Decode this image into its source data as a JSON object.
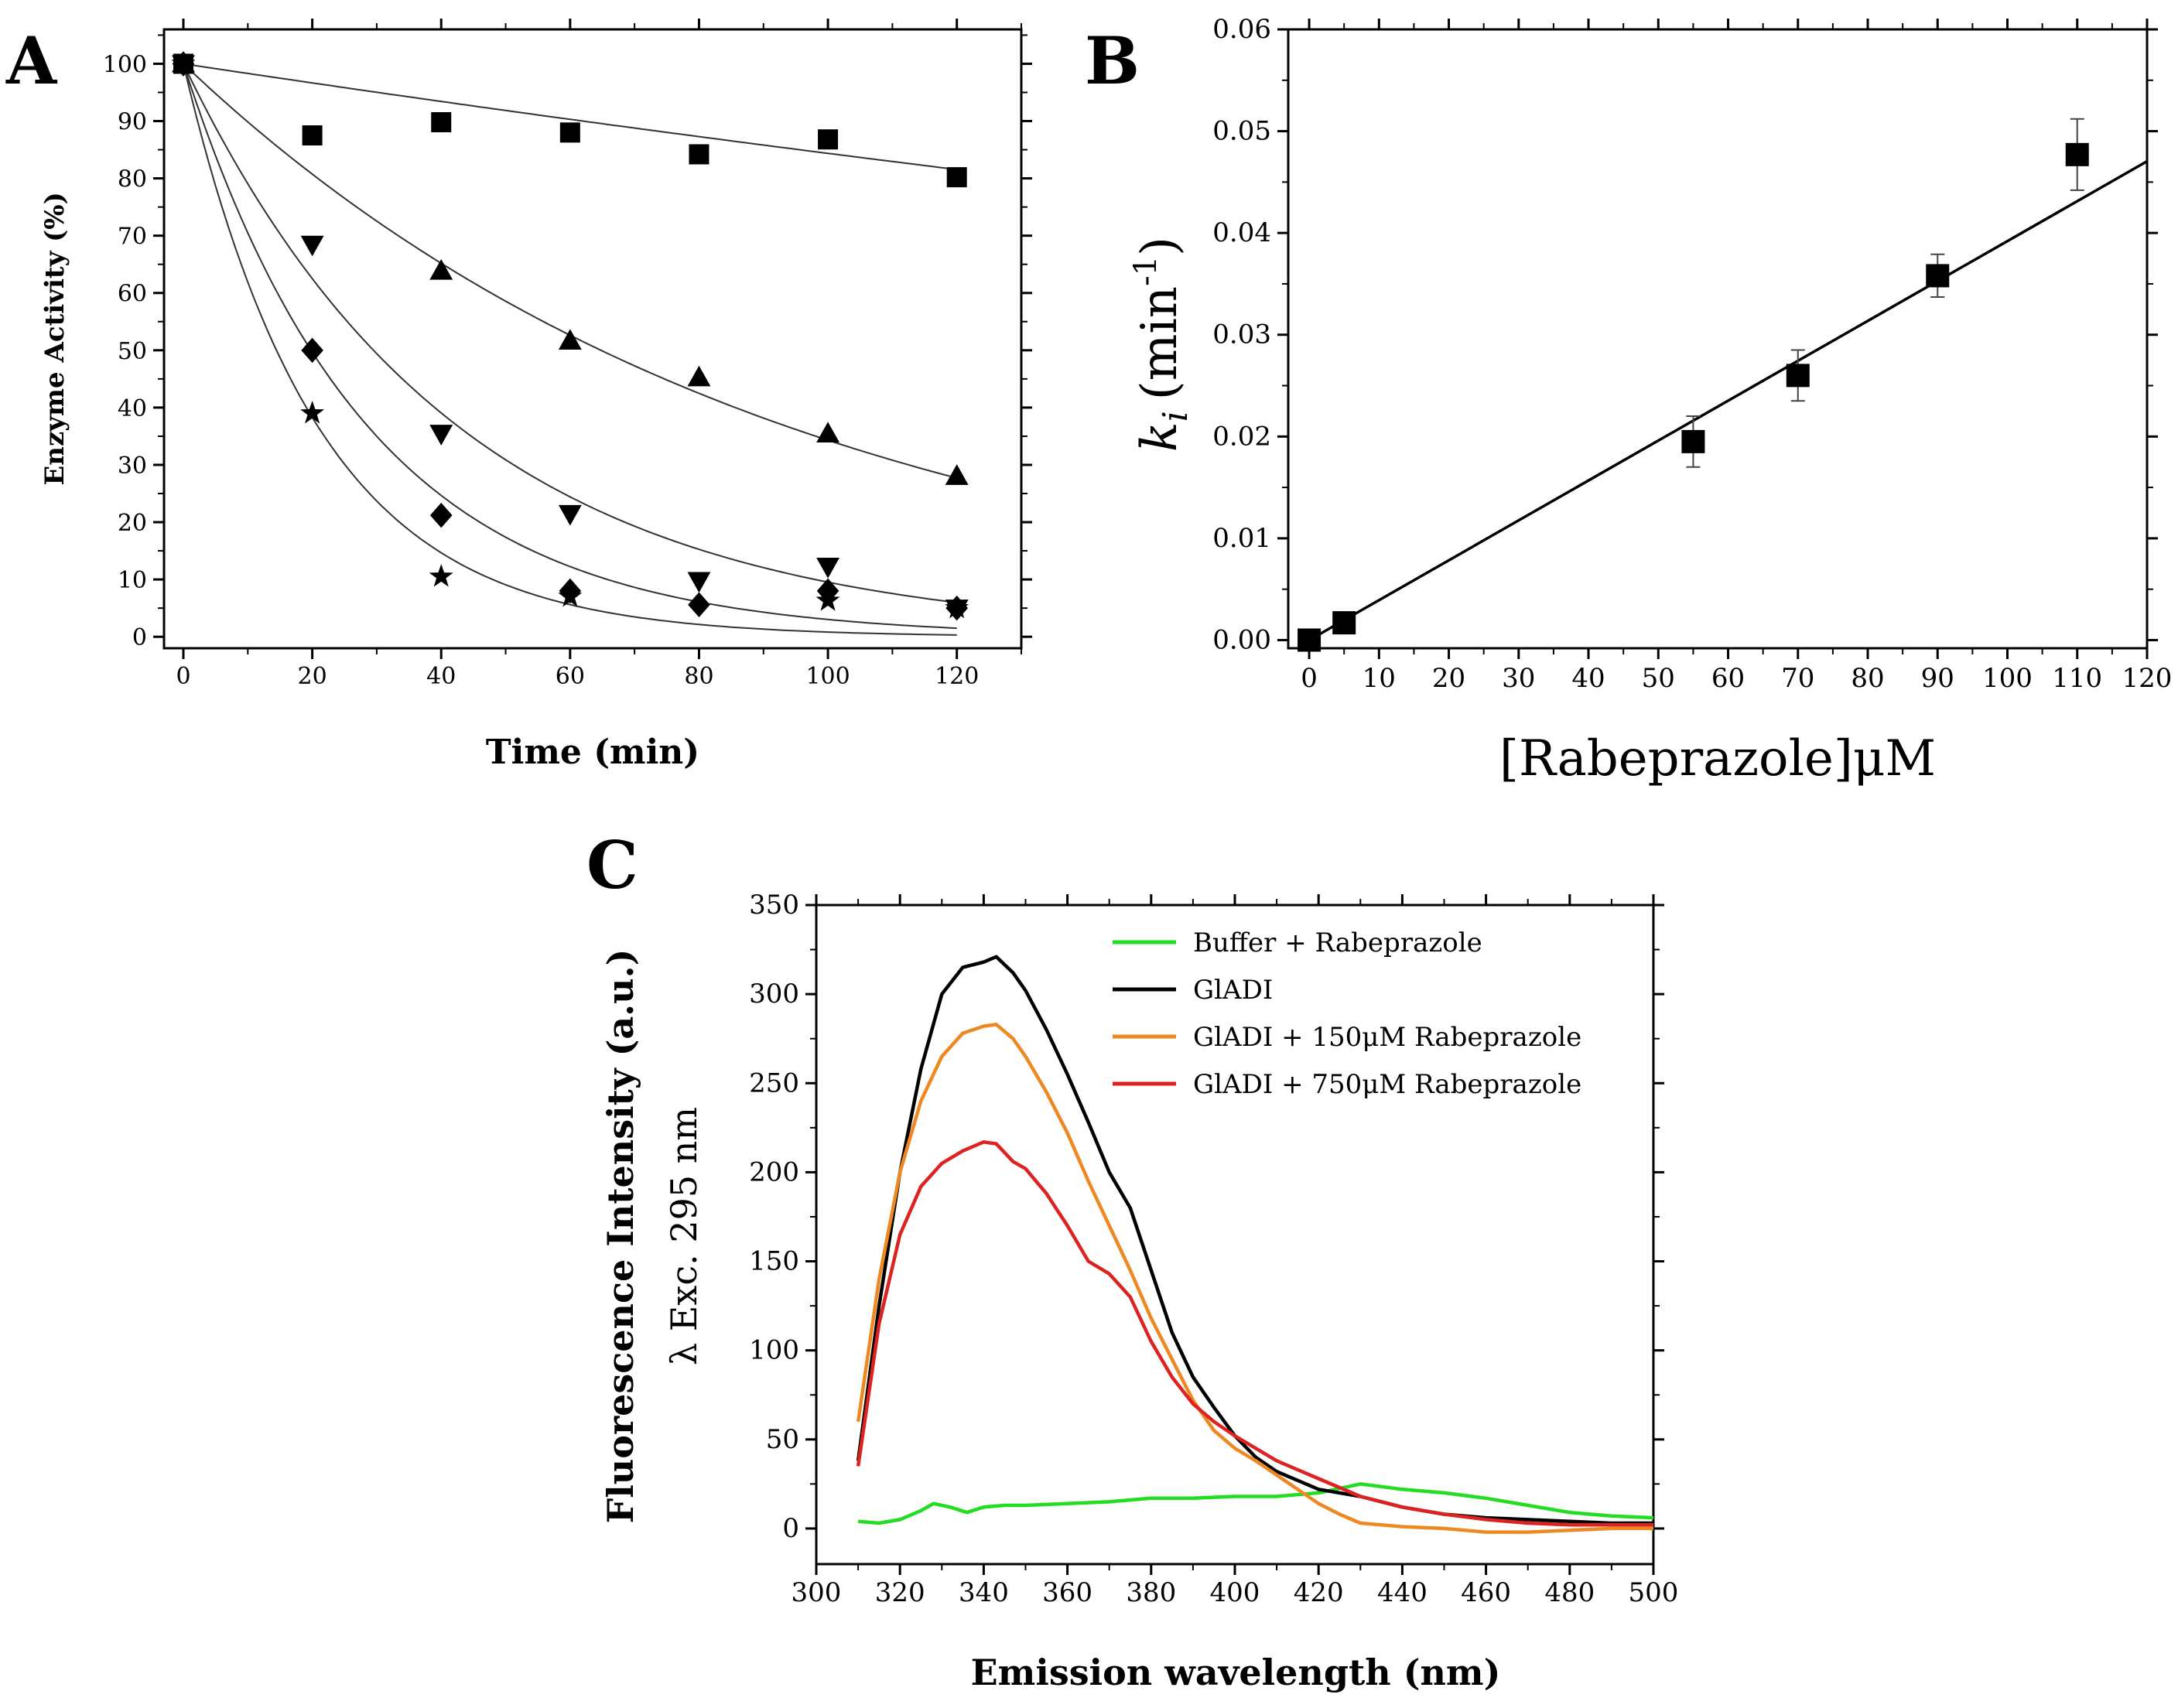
{
  "chart_data": [
    {
      "panel": "A",
      "type": "scatter",
      "title": "",
      "xlabel": "Time (min)",
      "ylabel": "Enzyme Activity (%)",
      "xlim": [
        -3,
        130
      ],
      "ylim": [
        -2,
        106
      ],
      "xticks": [
        0,
        20,
        40,
        60,
        80,
        100,
        120
      ],
      "yticks": [
        0,
        10,
        20,
        30,
        40,
        50,
        60,
        70,
        80,
        90,
        100
      ],
      "grid": false,
      "series": [
        {
          "name": "square",
          "marker": "square",
          "k": 0.0017,
          "x": [
            0,
            20,
            40,
            60,
            80,
            100,
            120
          ],
          "y": [
            100,
            87.5,
            89.8,
            88,
            84.2,
            86.8,
            80.2
          ]
        },
        {
          "name": "triangle-up",
          "marker": "triangle-up",
          "k": 0.0107,
          "x": [
            0,
            40,
            60,
            80,
            100,
            120
          ],
          "y": [
            100,
            63.8,
            51.6,
            45.2,
            35.4,
            28
          ]
        },
        {
          "name": "triangle-down",
          "marker": "triangle-down",
          "k": 0.0235,
          "x": [
            0,
            20,
            40,
            60,
            80,
            100,
            120
          ],
          "y": [
            100,
            68.5,
            35.5,
            21.5,
            9.8,
            12.3,
            5
          ]
        },
        {
          "name": "diamond",
          "marker": "diamond",
          "k": 0.035,
          "x": [
            0,
            20,
            40,
            60,
            80,
            100,
            120
          ],
          "y": [
            100,
            50,
            21.2,
            8,
            5.6,
            8,
            5
          ]
        },
        {
          "name": "star",
          "marker": "star",
          "k": 0.048,
          "x": [
            0,
            20,
            40,
            60,
            100,
            120
          ],
          "y": [
            100,
            39,
            10.5,
            7,
            6.3,
            5
          ]
        }
      ]
    },
    {
      "panel": "B",
      "type": "scatter",
      "title": "",
      "xlabel": "[Rabeprazole]μM",
      "ylabel_main": "k",
      "ylabel_sub": "i",
      "ylabel_unit": "(min",
      "ylabel_sup": "-1",
      "ylabel_close": ")",
      "xlim": [
        -3,
        120
      ],
      "ylim": [
        -0.0008,
        0.06
      ],
      "xticks": [
        0,
        10,
        20,
        30,
        40,
        50,
        60,
        70,
        80,
        90,
        100,
        110,
        120
      ],
      "yticks": [
        "0.00",
        "0.01",
        "0.02",
        "0.03",
        "0.04",
        "0.05",
        "0.06"
      ],
      "grid": false,
      "fit": {
        "slope": 0.000392,
        "intercept": 0.0
      },
      "series": [
        {
          "name": "ki",
          "marker": "square",
          "x": [
            0,
            5,
            55,
            70,
            90,
            110
          ],
          "y": [
            0.0,
            0.0017,
            0.0195,
            0.026,
            0.0358,
            0.0477
          ],
          "err": [
            0.0003,
            0.0004,
            0.0025,
            0.0025,
            0.0021,
            0.0035
          ]
        }
      ]
    },
    {
      "panel": "C",
      "type": "line",
      "title": "",
      "xlabel": "Emission wavelength (nm)",
      "ylabel": "Fluorescence Intensity (a.u.)",
      "ylabel2": "λ Exc. 295 nm",
      "xlim": [
        300,
        500
      ],
      "ylim": [
        -20,
        350
      ],
      "xticks": [
        300,
        320,
        340,
        360,
        380,
        400,
        420,
        440,
        460,
        480,
        500
      ],
      "yticks": [
        0,
        50,
        100,
        150,
        200,
        250,
        300,
        350
      ],
      "legend_position": "top-right",
      "grid": false,
      "series": [
        {
          "name": "Buffer + Rabeprazole",
          "color": "#22dd22",
          "x": [
            310,
            315,
            320,
            325,
            328,
            332,
            336,
            340,
            345,
            350,
            360,
            370,
            380,
            390,
            400,
            410,
            420,
            430,
            440,
            450,
            460,
            470,
            480,
            490,
            500
          ],
          "y": [
            4,
            3,
            5,
            10,
            14,
            12,
            9,
            12,
            13,
            13,
            14,
            15,
            17,
            17,
            18,
            18,
            20,
            25,
            22,
            20,
            17,
            13,
            9,
            7,
            6
          ]
        },
        {
          "name": "GlADI",
          "color": "#000000",
          "x": [
            310,
            315,
            320,
            325,
            330,
            335,
            340,
            343,
            347,
            350,
            355,
            360,
            365,
            370,
            375,
            380,
            385,
            390,
            395,
            400,
            405,
            410,
            420,
            430,
            440,
            450,
            460,
            470,
            480,
            490,
            500
          ],
          "y": [
            38,
            125,
            200,
            258,
            300,
            315,
            318,
            321,
            312,
            302,
            280,
            255,
            228,
            200,
            180,
            145,
            110,
            85,
            68,
            52,
            40,
            32,
            22,
            18,
            12,
            8,
            6,
            5,
            4,
            3,
            3
          ]
        },
        {
          "name": "GlADI + 150μM Rabeprazole",
          "color": "#ee8822",
          "x": [
            310,
            315,
            320,
            325,
            330,
            335,
            340,
            343,
            347,
            350,
            355,
            360,
            365,
            370,
            375,
            380,
            385,
            390,
            395,
            400,
            405,
            410,
            415,
            420,
            425,
            430,
            440,
            450,
            460,
            470,
            480,
            490,
            500
          ],
          "y": [
            60,
            140,
            200,
            240,
            265,
            278,
            282,
            283,
            275,
            265,
            245,
            222,
            195,
            170,
            145,
            118,
            95,
            72,
            55,
            45,
            38,
            30,
            22,
            14,
            8,
            3,
            1,
            0,
            -2,
            -2,
            -1,
            0,
            0
          ]
        },
        {
          "name": "GlADI + 750μM Rabeprazole",
          "color": "#dd2222",
          "x": [
            310,
            315,
            320,
            325,
            330,
            335,
            340,
            343,
            347,
            350,
            355,
            360,
            365,
            370,
            375,
            380,
            385,
            390,
            395,
            400,
            410,
            420,
            430,
            440,
            450,
            460,
            470,
            480,
            490,
            500
          ],
          "y": [
            35,
            115,
            165,
            192,
            205,
            212,
            217,
            216,
            206,
            202,
            188,
            170,
            150,
            143,
            130,
            105,
            85,
            70,
            60,
            52,
            38,
            28,
            18,
            12,
            8,
            5,
            3,
            2,
            2,
            2
          ]
        }
      ]
    }
  ],
  "panel_labels": {
    "a": "A",
    "b": "B",
    "c": "C"
  }
}
